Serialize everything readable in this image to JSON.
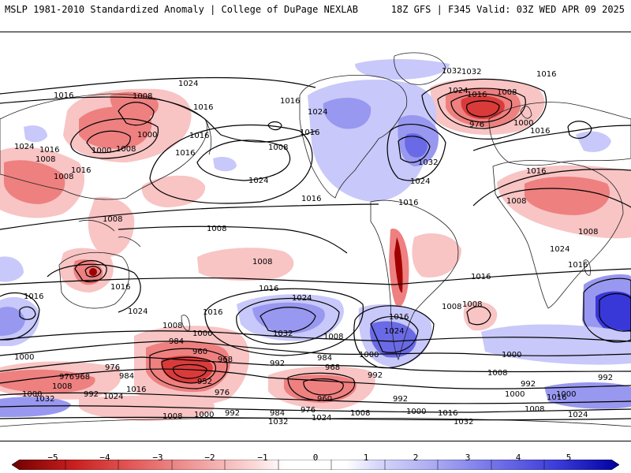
{
  "header": {
    "left_title": "MSLP 1981-2010 Standardized Anomaly | College of DuPage NEXLAB",
    "right_title": "18Z GFS | F345 Valid: 03Z WED APR 09 2025"
  },
  "map": {
    "pressure_labels": [
      {
        "id": "p1",
        "text": "1024"
      },
      {
        "id": "p2",
        "text": "1016"
      },
      {
        "id": "p3",
        "text": "1008"
      },
      {
        "id": "p4",
        "text": "1016"
      },
      {
        "id": "p5",
        "text": "1016"
      },
      {
        "id": "p6",
        "text": "1016"
      },
      {
        "id": "p7",
        "text": "1024"
      },
      {
        "id": "p8",
        "text": "1032"
      },
      {
        "id": "p9",
        "text": "1024"
      },
      {
        "id": "p10",
        "text": "1008"
      },
      {
        "id": "p11",
        "text": "1016"
      },
      {
        "id": "p12",
        "text": "1016"
      },
      {
        "id": "p13",
        "text": "976"
      },
      {
        "id": "p14",
        "text": "1000"
      },
      {
        "id": "p15",
        "text": "1016"
      },
      {
        "id": "p16",
        "text": "1000"
      },
      {
        "id": "p17",
        "text": "1016"
      },
      {
        "id": "p18",
        "text": "1008"
      },
      {
        "id": "p19",
        "text": "1024"
      },
      {
        "id": "p20",
        "text": "1016"
      },
      {
        "id": "p21",
        "text": "1008"
      },
      {
        "id": "p22",
        "text": "1016"
      },
      {
        "id": "p23",
        "text": "1008"
      },
      {
        "id": "p24",
        "text": "1000"
      },
      {
        "id": "p25",
        "text": "1008"
      },
      {
        "id": "p26",
        "text": "1016"
      },
      {
        "id": "p27",
        "text": "1016"
      },
      {
        "id": "p28",
        "text": "1024"
      },
      {
        "id": "p29",
        "text": "1008"
      },
      {
        "id": "p30",
        "text": "1016"
      },
      {
        "id": "p31",
        "text": "1024"
      },
      {
        "id": "p32",
        "text": "1032"
      },
      {
        "id": "p33",
        "text": "1008"
      },
      {
        "id": "p34",
        "text": "1032"
      },
      {
        "id": "p35",
        "text": "1016"
      },
      {
        "id": "p36",
        "text": "1008"
      },
      {
        "id": "p37",
        "text": "1016"
      },
      {
        "id": "p38",
        "text": "1024"
      },
      {
        "id": "p39",
        "text": "1016"
      },
      {
        "id": "p40",
        "text": "1008"
      },
      {
        "id": "p41",
        "text": "1016"
      },
      {
        "id": "p42",
        "text": "1024"
      },
      {
        "id": "p43",
        "text": "1032"
      },
      {
        "id": "p44",
        "text": "1000"
      },
      {
        "id": "p45",
        "text": "1008"
      },
      {
        "id": "p46",
        "text": "1000"
      },
      {
        "id": "p47",
        "text": "1016"
      },
      {
        "id": "p48",
        "text": "1024"
      },
      {
        "id": "p49",
        "text": "1008"
      },
      {
        "id": "p50",
        "text": "1016"
      },
      {
        "id": "p51",
        "text": "1008"
      },
      {
        "id": "p52",
        "text": "1016"
      },
      {
        "id": "p53",
        "text": "1008"
      },
      {
        "id": "p54",
        "text": "1016"
      },
      {
        "id": "p55",
        "text": "1024"
      },
      {
        "id": "p56",
        "text": "1000"
      },
      {
        "id": "p57",
        "text": "992"
      },
      {
        "id": "p58",
        "text": "976"
      },
      {
        "id": "p59",
        "text": "984"
      },
      {
        "id": "p60",
        "text": "960"
      },
      {
        "id": "p61",
        "text": "968"
      },
      {
        "id": "p62",
        "text": "952"
      },
      {
        "id": "p63",
        "text": "976"
      },
      {
        "id": "p64",
        "text": "976"
      },
      {
        "id": "p65",
        "text": "968"
      },
      {
        "id": "p66",
        "text": "1008"
      },
      {
        "id": "p67",
        "text": "1000"
      },
      {
        "id": "p68",
        "text": "992"
      },
      {
        "id": "p69",
        "text": "1032"
      },
      {
        "id": "p70",
        "text": "984"
      },
      {
        "id": "p71",
        "text": "1016"
      },
      {
        "id": "p72",
        "text": "1024"
      },
      {
        "id": "p73",
        "text": "1008"
      },
      {
        "id": "p74",
        "text": "1000"
      },
      {
        "id": "p75",
        "text": "992"
      },
      {
        "id": "p76",
        "text": "984"
      },
      {
        "id": "p77",
        "text": "1008"
      },
      {
        "id": "p78",
        "text": "1000"
      },
      {
        "id": "p79",
        "text": "992"
      },
      {
        "id": "p80",
        "text": "968"
      },
      {
        "id": "p81",
        "text": "960"
      },
      {
        "id": "p82",
        "text": "976"
      },
      {
        "id": "p83",
        "text": "984"
      },
      {
        "id": "p84",
        "text": "1032"
      },
      {
        "id": "p85",
        "text": "1024"
      },
      {
        "id": "p86",
        "text": "992"
      },
      {
        "id": "p87",
        "text": "1000"
      },
      {
        "id": "p88",
        "text": "1008"
      },
      {
        "id": "p89",
        "text": "1016"
      },
      {
        "id": "p90",
        "text": "1032"
      },
      {
        "id": "p91",
        "text": "1000"
      },
      {
        "id": "p92",
        "text": "992"
      },
      {
        "id": "p93",
        "text": "1008"
      },
      {
        "id": "p94",
        "text": "1016"
      },
      {
        "id": "p95",
        "text": "1000"
      },
      {
        "id": "p96",
        "text": "992"
      },
      {
        "id": "p97",
        "text": "1008"
      },
      {
        "id": "p98",
        "text": "1024"
      }
    ]
  },
  "colorbar": {
    "ticks": [
      "−5",
      "−4",
      "−3",
      "−2",
      "−1",
      "0",
      "1",
      "2",
      "3",
      "4",
      "5"
    ],
    "colors": [
      "#a00000",
      "#d93b3b",
      "#ee8080",
      "#f8c4c4",
      "#ffffff",
      "#ffffff",
      "#c8c8fa",
      "#9898f0",
      "#6a6ae6",
      "#3838d8",
      "#0000cc"
    ]
  }
}
